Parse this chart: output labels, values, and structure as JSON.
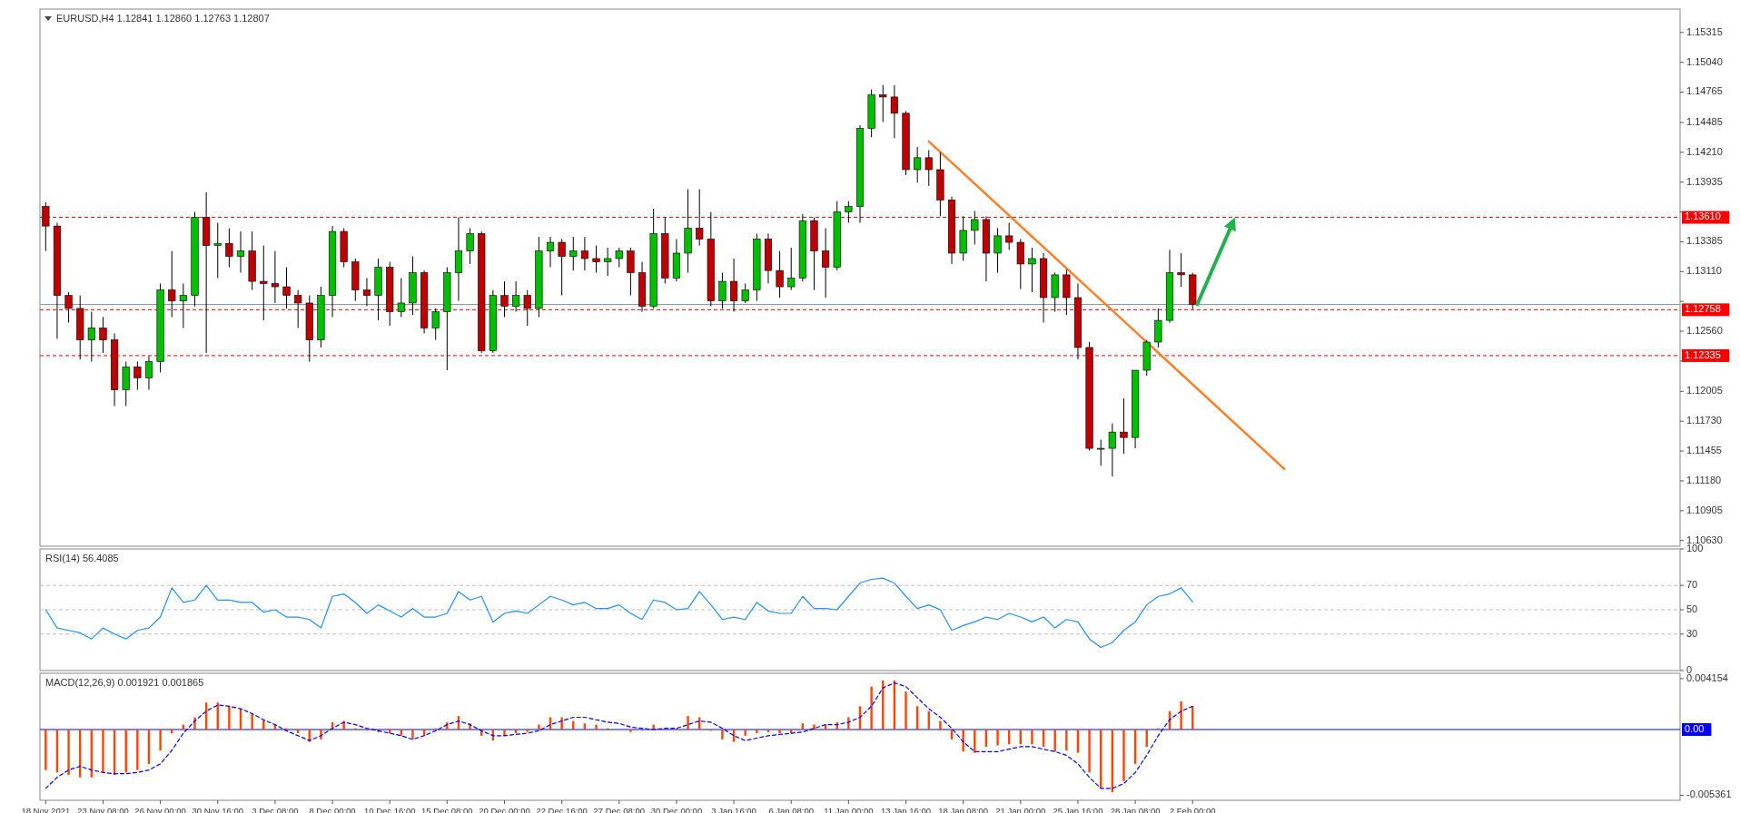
{
  "chart_data": [
    {
      "type": "candlestick",
      "title": "EURUSD,H4  1.12841 1.12860 1.12763 1.12807",
      "tick_labels": "y",
      "categories": [
        null,
        null,
        null,
        null,
        null,
        null,
        null,
        null,
        null,
        null,
        null,
        null,
        null,
        null,
        null,
        null,
        null,
        null,
        null,
        null,
        null,
        null,
        null,
        null,
        null,
        null,
        null,
        null,
        null,
        null,
        null,
        null,
        null,
        null,
        null,
        null,
        null,
        null,
        null,
        null,
        null,
        null,
        null,
        null,
        null,
        null,
        null,
        null,
        null,
        null,
        null,
        null,
        null,
        null,
        null,
        null,
        null,
        null,
        null,
        null,
        null,
        null,
        null,
        null,
        null,
        null,
        null,
        null,
        null,
        null,
        null,
        null,
        null,
        null,
        null,
        null,
        null,
        null,
        null,
        null,
        null,
        null,
        null,
        null,
        null,
        null,
        null,
        null,
        null,
        null,
        null,
        null,
        null,
        null,
        null,
        null,
        null,
        null,
        null,
        null,
        null,
        null,
        null,
        null,
        null,
        null,
        null,
        null,
        null,
        null,
        null,
        null,
        null,
        null,
        null,
        null,
        null,
        null,
        null,
        null,
        null,
        null,
        null,
        null,
        null,
        null,
        null,
        null,
        null,
        null,
        null,
        null,
        null,
        null,
        null,
        null,
        null,
        null,
        null,
        null,
        null,
        null,
        null
      ],
      "ylim": [
        1.10577,
        1.15531
      ],
      "yticks": [
        1.15315,
        {
          "value": 1.1504,
          "label": "1.15040"
        },
        1.14765,
        1.14485,
        {
          "value": 1.1421,
          "label": "1.14210"
        },
        1.13935,
        {
          "value": 1.1366,
          "label": null
        },
        1.13385,
        {
          "value": 1.1311,
          "label": "1.13110"
        },
        {
          "value": 1.12835,
          "label": null
        },
        {
          "value": 1.1256,
          "label": "1.12560"
        },
        {
          "value": 1.12285,
          "label": null
        },
        1.12005,
        {
          "value": 1.1173,
          "label": "1.11730"
        },
        1.11455,
        {
          "value": 1.1118,
          "label": "1.11180"
        },
        1.10905,
        {
          "value": 1.1063,
          "label": "1.10630"
        }
      ],
      "ref_lines": [
        {
          "axis": "y",
          "value": 1.1361,
          "label": "1.13610",
          "color": "#ff0000",
          "line_style": "dashed"
        },
        {
          "axis": "y",
          "value": 1.12807,
          "label": null,
          "color": "#8c98a4",
          "line_style": "solid"
        },
        {
          "axis": "y",
          "value": 1.12758,
          "label": "1.12758",
          "color": "#ff0000",
          "line_style": "dashed"
        },
        {
          "axis": "y",
          "value": 1.12335,
          "label": "1.12335",
          "color": "#ff0000",
          "line_style": "dashed"
        }
      ],
      "ohlc": [
        [
          1.1371,
          1.1375,
          1.133,
          1.1353
        ],
        [
          1.1353,
          1.1356,
          1.1249,
          1.1289
        ],
        [
          1.1289,
          1.1292,
          1.1264,
          1.1277
        ],
        [
          1.1277,
          1.1289,
          1.123,
          1.1248
        ],
        [
          1.1248,
          1.1274,
          1.1228,
          1.1259
        ],
        [
          1.1259,
          1.1269,
          1.1236,
          1.1248
        ],
        [
          1.1248,
          1.1254,
          1.1187,
          1.1202
        ],
        [
          1.1202,
          1.1228,
          1.1187,
          1.1223
        ],
        [
          1.1223,
          1.1228,
          1.1202,
          1.1213
        ],
        [
          1.1213,
          1.1233,
          1.1202,
          1.1228
        ],
        [
          1.1228,
          1.13,
          1.1218,
          1.1294
        ],
        [
          1.1294,
          1.133,
          1.1269,
          1.1284
        ],
        [
          1.1284,
          1.13,
          1.1259,
          1.1289
        ],
        [
          1.1289,
          1.1366,
          1.1279,
          1.1361
        ],
        [
          1.1361,
          1.1384,
          1.1236,
          1.1335
        ],
        [
          1.1335,
          1.1356,
          1.1305,
          1.1337
        ],
        [
          1.1337,
          1.1351,
          1.1315,
          1.1325
        ],
        [
          1.1325,
          1.1348,
          1.131,
          1.133
        ],
        [
          1.133,
          1.1348,
          1.1294,
          1.1302
        ],
        [
          1.1302,
          1.1335,
          1.1266,
          1.13
        ],
        [
          1.13,
          1.133,
          1.1282,
          1.1297
        ],
        [
          1.1297,
          1.1315,
          1.1277,
          1.1289
        ],
        [
          1.1289,
          1.1294,
          1.1259,
          1.1282
        ],
        [
          1.1282,
          1.1289,
          1.1228,
          1.1248
        ],
        [
          1.1248,
          1.1297,
          1.1241,
          1.1289
        ],
        [
          1.1289,
          1.1353,
          1.1269,
          1.1348
        ],
        [
          1.1348,
          1.1351,
          1.1315,
          1.132
        ],
        [
          1.132,
          1.1323,
          1.1284,
          1.1294
        ],
        [
          1.1294,
          1.1305,
          1.1279,
          1.1289
        ],
        [
          1.1289,
          1.1323,
          1.1266,
          1.1315
        ],
        [
          1.1315,
          1.132,
          1.1261,
          1.1274
        ],
        [
          1.1274,
          1.1305,
          1.1269,
          1.1282
        ],
        [
          1.1282,
          1.1325,
          1.1271,
          1.131
        ],
        [
          1.131,
          1.1312,
          1.1254,
          1.1259
        ],
        [
          1.1259,
          1.1277,
          1.1248,
          1.1274
        ],
        [
          1.1274,
          1.1315,
          1.122,
          1.131
        ],
        [
          1.131,
          1.1361,
          1.1284,
          1.133
        ],
        [
          1.133,
          1.1351,
          1.1318,
          1.1346
        ],
        [
          1.1346,
          1.1348,
          1.1236,
          1.1238
        ],
        [
          1.1238,
          1.1294,
          1.1236,
          1.1289
        ],
        [
          1.1289,
          1.1302,
          1.1269,
          1.1279
        ],
        [
          1.1279,
          1.1302,
          1.1274,
          1.1289
        ],
        [
          1.1289,
          1.1294,
          1.1261,
          1.1277
        ],
        [
          1.1277,
          1.1343,
          1.1269,
          1.133
        ],
        [
          1.133,
          1.1343,
          1.1315,
          1.1338
        ],
        [
          1.1338,
          1.1341,
          1.1289,
          1.1325
        ],
        [
          1.1325,
          1.1343,
          1.1312,
          1.133
        ],
        [
          1.133,
          1.1343,
          1.1312,
          1.1323
        ],
        [
          1.1323,
          1.1335,
          1.131,
          1.132
        ],
        [
          1.132,
          1.1333,
          1.1307,
          1.1323
        ],
        [
          1.1323,
          1.1333,
          1.1315,
          1.133
        ],
        [
          1.133,
          1.1333,
          1.1289,
          1.131
        ],
        [
          1.131,
          1.132,
          1.1274,
          1.1279
        ],
        [
          1.1279,
          1.1369,
          1.1277,
          1.1346
        ],
        [
          1.1346,
          1.1361,
          1.13,
          1.1305
        ],
        [
          1.1305,
          1.1341,
          1.1302,
          1.1328
        ],
        [
          1.1328,
          1.1387,
          1.131,
          1.1351
        ],
        [
          1.1351,
          1.1387,
          1.1335,
          1.1341
        ],
        [
          1.1341,
          1.1366,
          1.1279,
          1.1284
        ],
        [
          1.1284,
          1.131,
          1.1277,
          1.1302
        ],
        [
          1.1302,
          1.1323,
          1.1274,
          1.1284
        ],
        [
          1.1284,
          1.13,
          1.1282,
          1.1294
        ],
        [
          1.1294,
          1.1346,
          1.1284,
          1.1341
        ],
        [
          1.1341,
          1.1346,
          1.13,
          1.1312
        ],
        [
          1.1312,
          1.133,
          1.1287,
          1.1297
        ],
        [
          1.1297,
          1.1333,
          1.1294,
          1.1305
        ],
        [
          1.1305,
          1.1364,
          1.1302,
          1.1358
        ],
        [
          1.1358,
          1.1361,
          1.1294,
          1.133
        ],
        [
          1.133,
          1.1351,
          1.1287,
          1.1315
        ],
        [
          1.1315,
          1.1376,
          1.1312,
          1.1366
        ],
        [
          1.1366,
          1.1376,
          1.1356,
          1.1371
        ],
        [
          1.1371,
          1.1446,
          1.1356,
          1.1443
        ],
        [
          1.1443,
          1.1479,
          1.1435,
          1.1474
        ],
        [
          1.1474,
          1.1483,
          1.1449,
          1.1472
        ],
        [
          1.1472,
          1.1483,
          1.1434,
          1.1457
        ],
        [
          1.1457,
          1.1459,
          1.14,
          1.1405
        ],
        [
          1.1405,
          1.1426,
          1.1393,
          1.1416
        ],
        [
          1.1416,
          1.1423,
          1.139,
          1.1405
        ],
        [
          1.1405,
          1.1421,
          1.1362,
          1.1377
        ],
        [
          1.1377,
          1.138,
          1.1318,
          1.1328
        ],
        [
          1.1328,
          1.1362,
          1.1321,
          1.1349
        ],
        [
          1.1349,
          1.1367,
          1.1336,
          1.1359
        ],
        [
          1.1359,
          1.1362,
          1.1302,
          1.1328
        ],
        [
          1.1328,
          1.1351,
          1.131,
          1.1344
        ],
        [
          1.1344,
          1.1356,
          1.1331,
          1.1338
        ],
        [
          1.1338,
          1.1341,
          1.1295,
          1.1318
        ],
        [
          1.1318,
          1.1333,
          1.1292,
          1.1323
        ],
        [
          1.1323,
          1.1328,
          1.1264,
          1.1287
        ],
        [
          1.1287,
          1.131,
          1.1274,
          1.1308
        ],
        [
          1.1308,
          1.1313,
          1.1271,
          1.1287
        ],
        [
          1.1287,
          1.13,
          1.123,
          1.1241
        ],
        [
          1.1241,
          1.1246,
          1.1146,
          1.1148
        ],
        [
          1.1148,
          1.1156,
          1.1132,
          1.1148
        ],
        [
          1.1148,
          1.1171,
          1.1122,
          1.1163
        ],
        [
          1.1163,
          1.1194,
          1.1143,
          1.1158
        ],
        [
          1.1158,
          1.122,
          1.1148,
          1.122
        ],
        [
          1.122,
          1.1248,
          1.1215,
          1.1246
        ],
        [
          1.1246,
          1.1277,
          1.1241,
          1.1266
        ],
        [
          1.1266,
          1.1331,
          1.1264,
          1.131
        ],
        [
          1.131,
          1.1328,
          1.1297,
          1.1308
        ],
        [
          1.1308,
          1.131,
          1.12763,
          1.12807
        ],
        null,
        null,
        null,
        null,
        null,
        null,
        null,
        null,
        null,
        null,
        null,
        null,
        null,
        null,
        null,
        null,
        null,
        null,
        null,
        null,
        null,
        null,
        null,
        null,
        null,
        null,
        null,
        null,
        null,
        null,
        null,
        null,
        null,
        null,
        null,
        null,
        null,
        null,
        null,
        null,
        null,
        null
      ],
      "series": [
        {
          "type": "line",
          "color": "#ff7f27",
          "values": [
            null,
            null,
            null,
            null,
            null,
            null,
            null,
            null,
            null,
            null,
            null,
            null,
            null,
            null,
            null,
            null,
            null,
            null,
            null,
            null,
            null,
            null,
            null,
            null,
            null,
            null,
            null,
            null,
            null,
            null,
            null,
            null,
            null,
            null,
            null,
            null,
            null,
            null,
            null,
            null,
            null,
            null,
            null,
            null,
            null,
            null,
            null,
            null,
            null,
            null,
            null,
            null,
            null,
            null,
            null,
            null,
            null,
            null,
            null,
            null,
            null,
            null,
            null,
            null,
            null,
            null,
            null,
            null,
            null,
            null,
            null,
            null,
            null,
            null,
            null,
            null,
            null,
            1.1431,
            null,
            null,
            null,
            null,
            null,
            null,
            null,
            null,
            null,
            null,
            null,
            null,
            null,
            null,
            null,
            null,
            null,
            null,
            null,
            null,
            null,
            null,
            null,
            null,
            null,
            null,
            null,
            null,
            null,
            null,
            1.1129,
            null,
            null,
            null,
            null,
            null,
            null,
            null,
            null,
            null,
            null,
            null,
            null,
            null,
            null,
            null,
            null,
            null,
            null,
            null,
            null,
            null,
            null,
            null,
            null,
            null,
            null,
            null,
            null,
            null,
            null,
            null,
            null,
            null,
            null
          ]
        }
      ]
    },
    {
      "type": "line",
      "title": "RSI(14) 56.4085",
      "tick_labels": "y",
      "categories": [
        null,
        null,
        null,
        null,
        null,
        null,
        null,
        null,
        null,
        null,
        null,
        null,
        null,
        null,
        null,
        null,
        null,
        null,
        null,
        null,
        null,
        null,
        null,
        null,
        null,
        null,
        null,
        null,
        null,
        null,
        null,
        null,
        null,
        null,
        null,
        null,
        null,
        null,
        null,
        null,
        null,
        null,
        null,
        null,
        null,
        null,
        null,
        null,
        null,
        null,
        null,
        null,
        null,
        null,
        null,
        null,
        null,
        null,
        null,
        null,
        null,
        null,
        null,
        null,
        null,
        null,
        null,
        null,
        null,
        null,
        null,
        null,
        null,
        null,
        null,
        null,
        null,
        null,
        null,
        null,
        null,
        null,
        null,
        null,
        null,
        null,
        null,
        null,
        null,
        null,
        null,
        null,
        null,
        null,
        null,
        null,
        null,
        null,
        null,
        null,
        null,
        null,
        null,
        null,
        null,
        null,
        null,
        null,
        null,
        null,
        null,
        null,
        null,
        null,
        null,
        null,
        null,
        null,
        null,
        null,
        null,
        null,
        null,
        null,
        null,
        null,
        null,
        null,
        null,
        null,
        null,
        null,
        null,
        null,
        null,
        null,
        null,
        null,
        null,
        null,
        null,
        null,
        null
      ],
      "ylim": [
        0,
        100
      ],
      "yticks": [
        0,
        30,
        50,
        70,
        100
      ],
      "ref_lines": [
        {
          "axis": "y",
          "value": 70,
          "label": null,
          "color": "#c0c0c0",
          "line_style": "dashed"
        },
        {
          "axis": "y",
          "value": 50,
          "label": null,
          "color": "#c0c0c0",
          "line_style": "dashed"
        },
        {
          "axis": "y",
          "value": 30,
          "label": null,
          "color": "#c0c0c0",
          "line_style": "dashed"
        }
      ],
      "series": [
        {
          "color": "#1e90ff",
          "values": [
            50,
            35,
            33,
            31,
            26,
            35,
            30,
            26,
            33,
            35,
            44,
            68,
            56,
            58,
            70,
            58,
            58,
            56,
            56,
            48,
            50,
            44,
            44,
            42,
            35,
            61,
            63,
            56,
            47,
            54,
            49,
            44,
            51,
            44,
            44,
            47,
            65,
            58,
            61,
            40,
            47,
            49,
            47,
            54,
            61,
            58,
            54,
            56,
            51,
            51,
            54,
            47,
            42,
            58,
            56,
            50,
            51,
            65,
            54,
            42,
            44,
            42,
            56,
            49,
            47,
            47,
            61,
            51,
            51,
            50,
            61,
            72,
            75,
            76,
            72,
            61,
            51,
            54,
            50,
            33,
            37,
            40,
            44,
            42,
            47,
            44,
            40,
            44,
            35,
            42,
            40,
            26,
            19,
            23,
            33,
            40,
            54,
            61,
            63,
            68,
            56.4,
            null,
            null,
            null,
            null,
            null,
            null,
            null,
            null,
            null,
            null,
            null,
            null,
            null,
            null,
            null,
            null,
            null,
            null,
            null,
            null,
            null,
            null,
            null,
            null,
            null,
            null,
            null,
            null,
            null,
            null,
            null,
            null,
            null,
            null,
            null,
            null,
            null,
            null,
            null,
            null,
            null,
            null
          ]
        }
      ]
    },
    {
      "type": "bar",
      "title": "MACD(12,26,9) 0.001921 0.001865",
      "categories": [
        "18 Nov 2021",
        null,
        null,
        null,
        null,
        "23 Nov 08:00",
        null,
        null,
        null,
        null,
        "26 Nov 00:00",
        null,
        null,
        null,
        null,
        "30 Nov 16:00",
        null,
        null,
        null,
        null,
        "3 Dec 08:00",
        null,
        null,
        null,
        null,
        "8 Dec 00:00",
        null,
        null,
        null,
        null,
        "10 Dec 16:00",
        null,
        null,
        null,
        null,
        "15 Dec 08:00",
        null,
        null,
        null,
        null,
        "20 Dec 00:00",
        null,
        null,
        null,
        null,
        "22 Dec 16:00",
        null,
        null,
        null,
        null,
        "27 Dec 08:00",
        null,
        null,
        null,
        null,
        "30 Dec 00:00",
        null,
        null,
        null,
        null,
        "3 Jan 16:00",
        null,
        null,
        null,
        null,
        "6 Jan 08:00",
        null,
        null,
        null,
        null,
        "11 Jan 00:00",
        null,
        null,
        null,
        null,
        "13 Jan 16:00",
        null,
        null,
        null,
        null,
        "18 Jan 08:00",
        null,
        null,
        null,
        null,
        "21 Jan 00:00",
        null,
        null,
        null,
        null,
        "25 Jan 16:00",
        null,
        null,
        null,
        null,
        "28 Jan 08:00",
        null,
        null,
        null,
        null,
        "2 Feb 00:00",
        null,
        null,
        null,
        null,
        null,
        null,
        null,
        null,
        null,
        null,
        null,
        null,
        null,
        null,
        null,
        null,
        null,
        null,
        null,
        null,
        null,
        null,
        null,
        null,
        null,
        null,
        null,
        null,
        null,
        null,
        null,
        null,
        null,
        null,
        null,
        null,
        null,
        null,
        null,
        null,
        null,
        null
      ],
      "ylim": [
        -0.00577,
        0.00459
      ],
      "yticks": [
        -0.005361,
        0.004154
      ],
      "ref_lines": [
        {
          "axis": "y",
          "value": 0,
          "label": "0.00",
          "color": "#0000ff",
          "line_style": "solid"
        }
      ],
      "series": [
        {
          "type": "bar",
          "color": "#ff4500",
          "values": [
            -0.0033,
            -0.0035,
            -0.0037,
            -0.0039,
            -0.0039,
            -0.0035,
            -0.0037,
            -0.0035,
            -0.0033,
            -0.0028,
            -0.0017,
            -0.0003,
            0.0004,
            0.001,
            0.0022,
            0.0022,
            0.0019,
            0.0017,
            0.0013,
            0.0008,
            0.0004,
            0.0001,
            -0.0003,
            -0.001,
            -0.0008,
            0.0006,
            0.0007,
            0.0001,
            -0.0001,
            -0.0002,
            -0.0003,
            -0.0005,
            -0.0008,
            -0.0005,
            0.0001,
            0.0006,
            0.0011,
            0.0005,
            -0.0005,
            -0.0009,
            -0.0005,
            -0.0003,
            -0.0002,
            0.0004,
            0.001,
            0.001,
            0.0007,
            0.0005,
            0.0004,
            0.0001,
            0,
            -0.0002,
            -0.0001,
            0.0004,
            0.0001,
            0.0001,
            0.0011,
            0.001,
            -0.0001,
            -0.0008,
            -0.001,
            -0.0005,
            -0.0003,
            -0.0002,
            -0.0003,
            -0.0003,
            0.0005,
            0.0004,
            0.0004,
            0.0006,
            0.001,
            0.0019,
            0.0035,
            0.004,
            0.004,
            0.0031,
            0.0019,
            0.0015,
            0.0007,
            -0.0008,
            -0.0018,
            -0.0019,
            -0.0014,
            -0.0013,
            -0.0012,
            -0.0012,
            -0.0012,
            -0.0014,
            -0.0018,
            -0.0017,
            -0.0019,
            -0.0035,
            -0.0048,
            -0.0051,
            -0.0042,
            -0.0028,
            -0.0014,
            0.0001,
            0.0015,
            0.0023,
            0.0019,
            null,
            null,
            null,
            null,
            null,
            null,
            null,
            null,
            null,
            null,
            null,
            null,
            null,
            null,
            null,
            null,
            null,
            null,
            null,
            null,
            null,
            null,
            null,
            null,
            null,
            null,
            null,
            null,
            null,
            null,
            null,
            null,
            null,
            null,
            null,
            null,
            null,
            null,
            null,
            null,
            null,
            null
          ]
        },
        {
          "type": "line",
          "color": "#0000ff",
          "line_style": "dashed",
          "values": [
            -0.0048,
            -0.0039,
            -0.0033,
            -0.003,
            -0.0033,
            -0.0035,
            -0.0036,
            -0.0036,
            -0.0035,
            -0.0033,
            -0.0028,
            -0.0017,
            -0.0003,
            0.0007,
            0.0015,
            0.002,
            0.0019,
            0.0017,
            0.0013,
            0.0008,
            0.0004,
            -0.0001,
            -0.0005,
            -0.0009,
            -0.0005,
            0.0001,
            0.0006,
            0.0004,
            0.0001,
            -0.0001,
            -0.0003,
            -0.0005,
            -0.0008,
            -0.0005,
            -0.0001,
            0.0004,
            0.0007,
            0.0004,
            -0.0001,
            -0.0005,
            -0.0005,
            -0.0004,
            -0.0003,
            -0.0001,
            0.0004,
            0.0007,
            0.001,
            0.001,
            0.0008,
            0.0006,
            0.0005,
            0.0002,
            0.0001,
            0,
            0.0001,
            0.0001,
            0.0004,
            0.0007,
            0.0006,
            0.0001,
            -0.0005,
            -0.0009,
            -0.0007,
            -0.0005,
            -0.0004,
            -0.0003,
            -0.0002,
            0.0001,
            0.0004,
            0.0004,
            0.0006,
            0.001,
            0.0019,
            0.0034,
            0.0038,
            0.0035,
            0.0026,
            0.0017,
            0.001,
            0.0001,
            -0.001,
            -0.0018,
            -0.0018,
            -0.0018,
            -0.0016,
            -0.0014,
            -0.0014,
            -0.0016,
            -0.0018,
            -0.0021,
            -0.0028,
            -0.0039,
            -0.0048,
            -0.0048,
            -0.0044,
            -0.0035,
            -0.0021,
            -0.0005,
            0.0008,
            0.0015,
            0.0019,
            null,
            null,
            null,
            null,
            null,
            null,
            null,
            null,
            null,
            null,
            null,
            null,
            null,
            null,
            null,
            null,
            null,
            null,
            null,
            null,
            null,
            null,
            null,
            null,
            null,
            null,
            null,
            null,
            null,
            null,
            null,
            null,
            null,
            null,
            null,
            null,
            null,
            null,
            null,
            null,
            null,
            null
          ]
        }
      ]
    }
  ]
}
